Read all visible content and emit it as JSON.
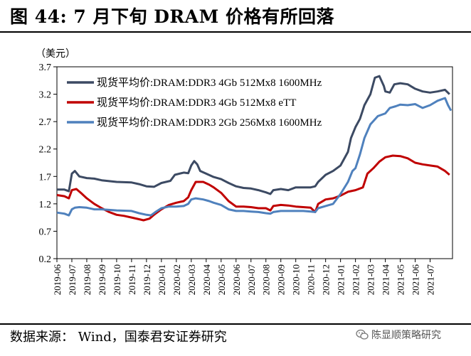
{
  "header": {
    "title": "图 44:  7 月下旬 DRAM 价格有所回落"
  },
  "footer": {
    "source": "数据来源：  Wind，国泰君安证券研究",
    "watermark": "陈显顺策略研究"
  },
  "icons": {
    "watermark": "wechat-icon"
  },
  "chart_data": {
    "type": "line",
    "title": "7 月下旬 DRAM 价格有所回落",
    "ylabel": "（美元）",
    "ylim": [
      0.2,
      3.7
    ],
    "yticks": [
      "3.7",
      "3.2",
      "2.7",
      "2.2",
      "1.7",
      "1.2",
      "0.7",
      "0.2"
    ],
    "xticks": [
      "2019-06",
      "2019-07",
      "2019-08",
      "2019-09",
      "2019-10",
      "2019-11",
      "2019-12",
      "2020-01",
      "2020-02",
      "2020-03",
      "2020-04",
      "2020-05",
      "2020-06",
      "2020-07",
      "2020-08",
      "2020-09",
      "2020-10",
      "2020-11",
      "2020-12",
      "2021-01",
      "2021-02",
      "2021-03",
      "2021-04",
      "2021-05",
      "2021-06",
      "2021-07"
    ],
    "xlim_months": [
      0,
      26.5
    ],
    "legend_position": "top-left",
    "series": [
      {
        "name": "现货平均价:DRAM:DDR3 4Gb 512Mx8 1600MHz",
        "color": "#3c4a63",
        "points": [
          [
            0,
            1.46
          ],
          [
            0.5,
            1.46
          ],
          [
            0.8,
            1.43
          ],
          [
            1.0,
            1.75
          ],
          [
            1.2,
            1.8
          ],
          [
            1.5,
            1.7
          ],
          [
            2.0,
            1.67
          ],
          [
            2.5,
            1.66
          ],
          [
            3,
            1.63
          ],
          [
            4,
            1.6
          ],
          [
            5,
            1.59
          ],
          [
            5.5,
            1.56
          ],
          [
            6,
            1.52
          ],
          [
            6.5,
            1.51
          ],
          [
            7,
            1.58
          ],
          [
            7.6,
            1.62
          ],
          [
            7.9,
            1.73
          ],
          [
            8.5,
            1.77
          ],
          [
            8.8,
            1.76
          ],
          [
            9.0,
            1.9
          ],
          [
            9.2,
            1.98
          ],
          [
            9.4,
            1.92
          ],
          [
            9.6,
            1.8
          ],
          [
            10,
            1.75
          ],
          [
            10.5,
            1.69
          ],
          [
            11,
            1.65
          ],
          [
            11.5,
            1.58
          ],
          [
            12,
            1.52
          ],
          [
            12.5,
            1.49
          ],
          [
            13,
            1.48
          ],
          [
            13.5,
            1.45
          ],
          [
            14,
            1.41
          ],
          [
            14.3,
            1.38
          ],
          [
            14.5,
            1.45
          ],
          [
            15,
            1.47
          ],
          [
            15.5,
            1.45
          ],
          [
            16,
            1.5
          ],
          [
            16.5,
            1.5
          ],
          [
            17,
            1.5
          ],
          [
            17.3,
            1.52
          ],
          [
            17.5,
            1.6
          ],
          [
            18,
            1.73
          ],
          [
            18.5,
            1.8
          ],
          [
            19,
            1.9
          ],
          [
            19.5,
            2.15
          ],
          [
            19.7,
            2.4
          ],
          [
            20,
            2.6
          ],
          [
            20.3,
            2.75
          ],
          [
            20.6,
            3.0
          ],
          [
            21,
            3.2
          ],
          [
            21.3,
            3.5
          ],
          [
            21.6,
            3.53
          ],
          [
            21.9,
            3.35
          ],
          [
            22,
            3.25
          ],
          [
            22.3,
            3.23
          ],
          [
            22.6,
            3.38
          ],
          [
            23,
            3.4
          ],
          [
            23.5,
            3.38
          ],
          [
            24,
            3.3
          ],
          [
            24.5,
            3.25
          ],
          [
            25,
            3.23
          ],
          [
            25.5,
            3.25
          ],
          [
            26,
            3.28
          ],
          [
            26.3,
            3.2
          ]
        ]
      },
      {
        "name": "现货平均价:DRAM:DDR3 4Gb 512Mx8 eTT",
        "color": "#c00000",
        "points": [
          [
            0,
            1.36
          ],
          [
            0.5,
            1.34
          ],
          [
            0.8,
            1.3
          ],
          [
            1.0,
            1.45
          ],
          [
            1.3,
            1.47
          ],
          [
            1.6,
            1.4
          ],
          [
            2,
            1.3
          ],
          [
            2.5,
            1.2
          ],
          [
            3,
            1.12
          ],
          [
            3.5,
            1.05
          ],
          [
            4,
            1.0
          ],
          [
            4.5,
            0.98
          ],
          [
            5,
            0.95
          ],
          [
            5.5,
            0.92
          ],
          [
            5.8,
            0.9
          ],
          [
            6.2,
            0.93
          ],
          [
            6.5,
            1.0
          ],
          [
            7,
            1.1
          ],
          [
            7.5,
            1.18
          ],
          [
            8,
            1.22
          ],
          [
            8.5,
            1.25
          ],
          [
            8.8,
            1.32
          ],
          [
            9.0,
            1.45
          ],
          [
            9.3,
            1.6
          ],
          [
            9.8,
            1.6
          ],
          [
            10.2,
            1.55
          ],
          [
            10.5,
            1.5
          ],
          [
            11,
            1.4
          ],
          [
            11.5,
            1.25
          ],
          [
            12,
            1.15
          ],
          [
            12.5,
            1.15
          ],
          [
            13,
            1.14
          ],
          [
            13.5,
            1.12
          ],
          [
            14,
            1.12
          ],
          [
            14.3,
            1.08
          ],
          [
            14.5,
            1.16
          ],
          [
            15,
            1.18
          ],
          [
            15.5,
            1.17
          ],
          [
            16,
            1.15
          ],
          [
            16.5,
            1.14
          ],
          [
            17,
            1.13
          ],
          [
            17.3,
            1.05
          ],
          [
            17.5,
            1.2
          ],
          [
            18,
            1.28
          ],
          [
            18.5,
            1.3
          ],
          [
            19,
            1.35
          ],
          [
            19.5,
            1.42
          ],
          [
            20,
            1.45
          ],
          [
            20.5,
            1.5
          ],
          [
            20.8,
            1.75
          ],
          [
            21.2,
            1.85
          ],
          [
            21.6,
            1.97
          ],
          [
            22,
            2.05
          ],
          [
            22.5,
            2.08
          ],
          [
            23,
            2.07
          ],
          [
            23.5,
            2.03
          ],
          [
            24,
            1.95
          ],
          [
            24.5,
            1.92
          ],
          [
            25,
            1.9
          ],
          [
            25.5,
            1.88
          ],
          [
            26,
            1.8
          ],
          [
            26.3,
            1.73
          ]
        ]
      },
      {
        "name": "现货平均价:DRAM:DDR3 2Gb 256Mx8 1600MHz",
        "color": "#4f81bd",
        "points": [
          [
            0,
            1.04
          ],
          [
            0.5,
            1.02
          ],
          [
            0.8,
            0.99
          ],
          [
            1.0,
            1.1
          ],
          [
            1.2,
            1.13
          ],
          [
            1.5,
            1.14
          ],
          [
            2,
            1.13
          ],
          [
            2.5,
            1.1
          ],
          [
            3,
            1.1
          ],
          [
            4,
            1.08
          ],
          [
            5,
            1.07
          ],
          [
            5.5,
            1.03
          ],
          [
            6,
            1.0
          ],
          [
            6.3,
            0.99
          ],
          [
            6.6,
            1.05
          ],
          [
            7,
            1.12
          ],
          [
            7.5,
            1.15
          ],
          [
            8,
            1.15
          ],
          [
            8.5,
            1.16
          ],
          [
            8.8,
            1.2
          ],
          [
            9.0,
            1.28
          ],
          [
            9.3,
            1.3
          ],
          [
            9.8,
            1.28
          ],
          [
            10.2,
            1.25
          ],
          [
            10.5,
            1.22
          ],
          [
            11,
            1.18
          ],
          [
            11.5,
            1.1
          ],
          [
            12,
            1.07
          ],
          [
            12.5,
            1.07
          ],
          [
            13,
            1.06
          ],
          [
            13.5,
            1.05
          ],
          [
            14,
            1.03
          ],
          [
            14.3,
            1.02
          ],
          [
            14.5,
            1.05
          ],
          [
            15,
            1.07
          ],
          [
            15.5,
            1.07
          ],
          [
            16,
            1.07
          ],
          [
            16.5,
            1.07
          ],
          [
            17,
            1.06
          ],
          [
            17.3,
            1.05
          ],
          [
            17.5,
            1.12
          ],
          [
            18,
            1.16
          ],
          [
            18.5,
            1.2
          ],
          [
            19,
            1.38
          ],
          [
            19.5,
            1.6
          ],
          [
            19.8,
            1.8
          ],
          [
            20,
            1.85
          ],
          [
            20.3,
            2.1
          ],
          [
            20.6,
            2.4
          ],
          [
            21,
            2.65
          ],
          [
            21.5,
            2.8
          ],
          [
            22,
            2.85
          ],
          [
            22.3,
            2.95
          ],
          [
            22.7,
            2.98
          ],
          [
            23,
            3.01
          ],
          [
            23.5,
            3.0
          ],
          [
            24,
            3.02
          ],
          [
            24.5,
            2.95
          ],
          [
            25,
            3.0
          ],
          [
            25.5,
            3.08
          ],
          [
            26,
            3.13
          ],
          [
            26.2,
            3.0
          ],
          [
            26.4,
            2.9
          ]
        ]
      }
    ]
  }
}
